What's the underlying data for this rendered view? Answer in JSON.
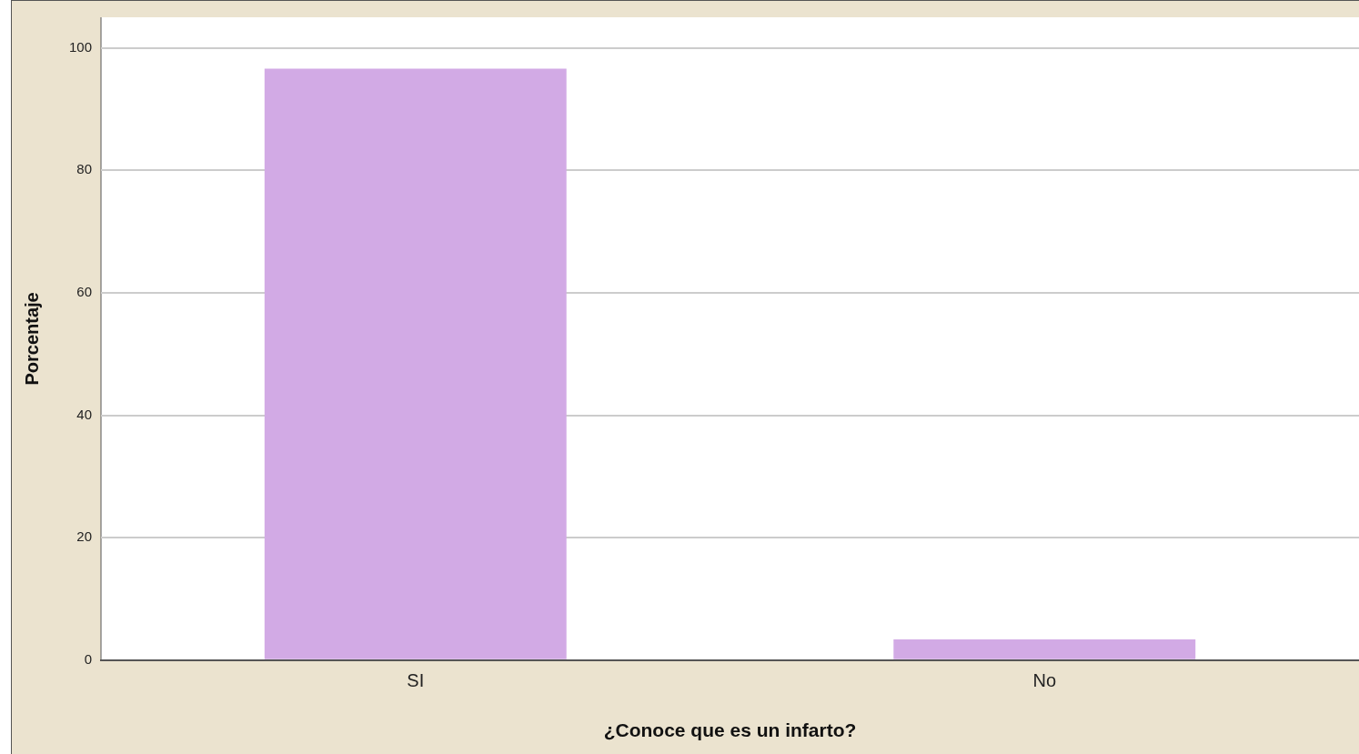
{
  "chart_data": {
    "type": "bar",
    "categories": [
      "SI",
      "No"
    ],
    "values": [
      96.6,
      3.4
    ],
    "color": "#d2aae5",
    "xlabel": "¿Conoce que es un infarto?",
    "ylabel": "Porcentaje",
    "ylim": [
      0,
      105
    ],
    "yticks": [
      0,
      20,
      40,
      60,
      80,
      100
    ],
    "grid": "y",
    "legend": false
  }
}
